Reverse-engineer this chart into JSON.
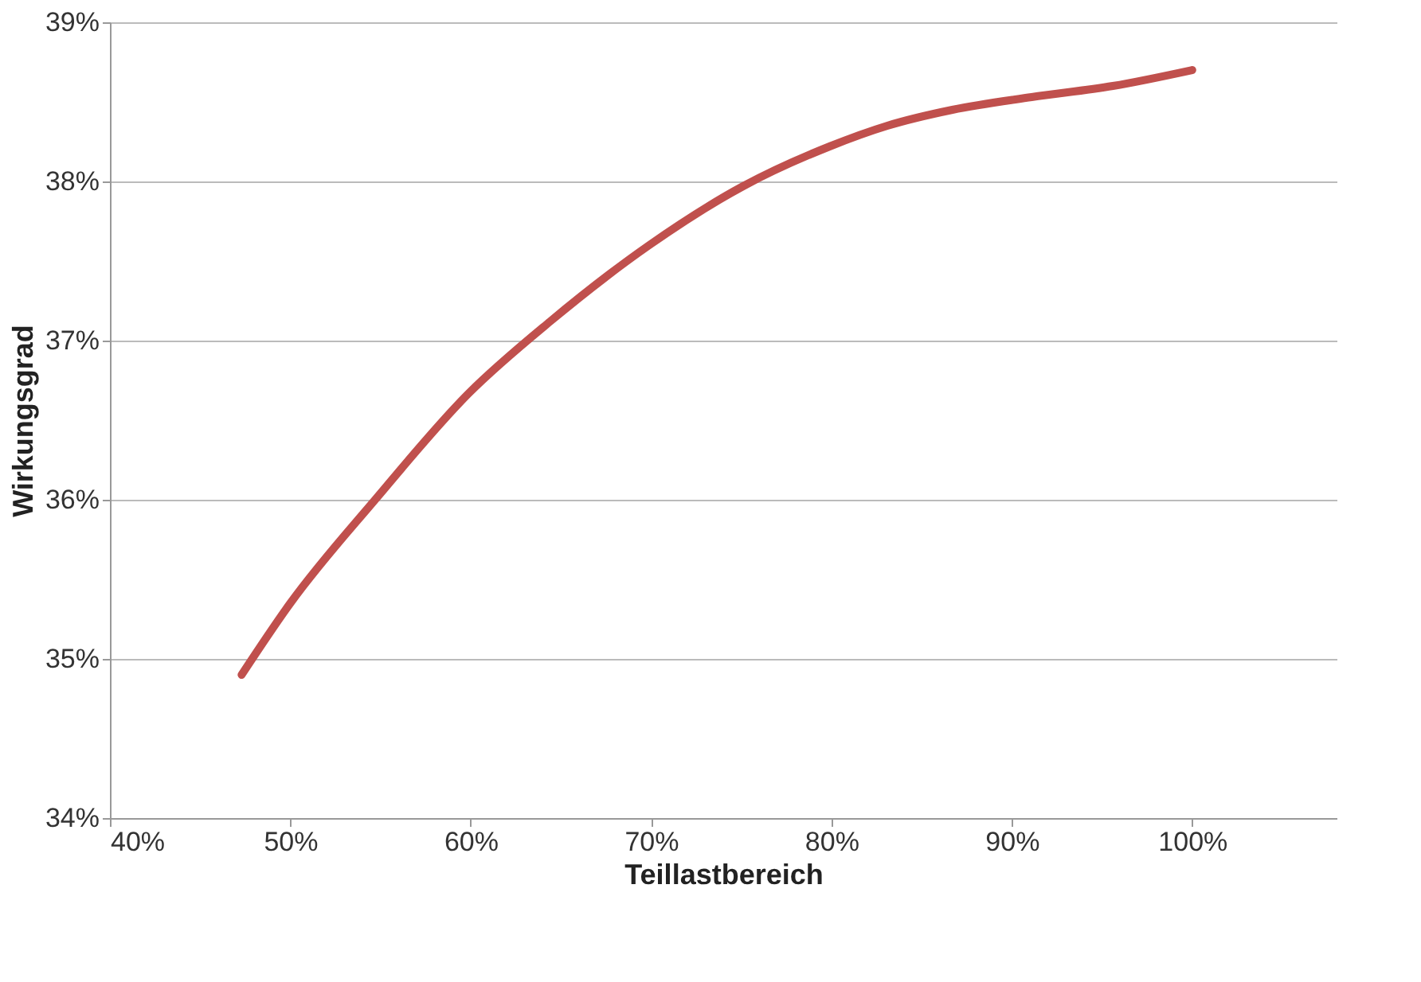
{
  "chart_data": {
    "type": "line",
    "xlabel": "Teillastbereich",
    "ylabel": "Wirkungsgrad",
    "x": [
      47.3,
      50,
      54.7,
      59.9,
      64.4,
      69.9,
      75.1,
      79.9,
      83.1,
      86.7,
      91.1,
      95.6,
      100
    ],
    "series": [
      {
        "color": "#c0504d",
        "values": [
          34.9,
          35.35,
          36.0,
          36.67,
          37.12,
          37.6,
          37.97,
          38.22,
          38.35,
          38.45,
          38.53,
          38.6,
          38.7
        ]
      }
    ],
    "xlim": [
      40,
      108
    ],
    "xticks": [
      {
        "value": 40,
        "label": "40%"
      },
      {
        "value": 50,
        "label": "50%"
      },
      {
        "value": 60,
        "label": "60%"
      },
      {
        "value": 70,
        "label": "70%"
      },
      {
        "value": 80,
        "label": "80%"
      },
      {
        "value": 90,
        "label": "90%"
      },
      {
        "value": 100,
        "label": "100%"
      }
    ],
    "ylim": [
      34,
      39
    ],
    "yticks": [
      {
        "value": 34,
        "label": "34%"
      },
      {
        "value": 35,
        "label": "35%"
      },
      {
        "value": 36,
        "label": "36%"
      },
      {
        "value": 37,
        "label": "37%"
      },
      {
        "value": 38,
        "label": "38%"
      },
      {
        "value": 39,
        "label": "39%"
      }
    ],
    "grid": "y",
    "marker": "none",
    "line_style": "solid"
  }
}
